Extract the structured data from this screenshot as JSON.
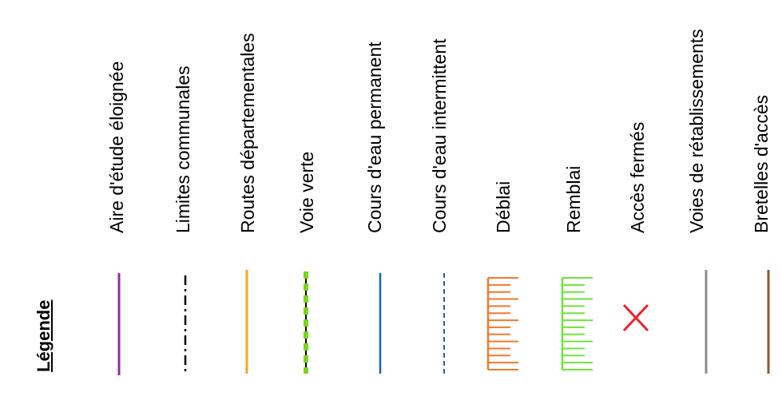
{
  "legend": {
    "title": "Légende",
    "items": [
      {
        "label": "Aire d'étude éloignée",
        "symbol": "solid-line",
        "color": "#8B2FA8"
      },
      {
        "label": "Limites communales",
        "symbol": "dash-dot-line",
        "color": "#000000"
      },
      {
        "label": "Routes départementales",
        "symbol": "solid-line",
        "color": "#F5A623"
      },
      {
        "label": "Voie verte",
        "symbol": "green-dashed-line",
        "color": "#7ED321"
      },
      {
        "label": "Cours d'eau permanent",
        "symbol": "solid-line",
        "color": "#1F5FB5"
      },
      {
        "label": "Cours d'eau intermittent",
        "symbol": "dashed-line",
        "color": "#1F5FB5"
      },
      {
        "label": "Déblai",
        "symbol": "comb",
        "color": "#F07A2A"
      },
      {
        "label": "Remblai",
        "symbol": "comb",
        "color": "#6EE33A"
      },
      {
        "label": "Accès fermés",
        "symbol": "cross",
        "color": "#E8232A"
      },
      {
        "label": "Voies de rétablissements",
        "symbol": "solid-line",
        "color": "#8C8C8C"
      },
      {
        "label": "Bretelles d'accès",
        "symbol": "solid-line",
        "color": "#8B5A2B"
      }
    ]
  }
}
